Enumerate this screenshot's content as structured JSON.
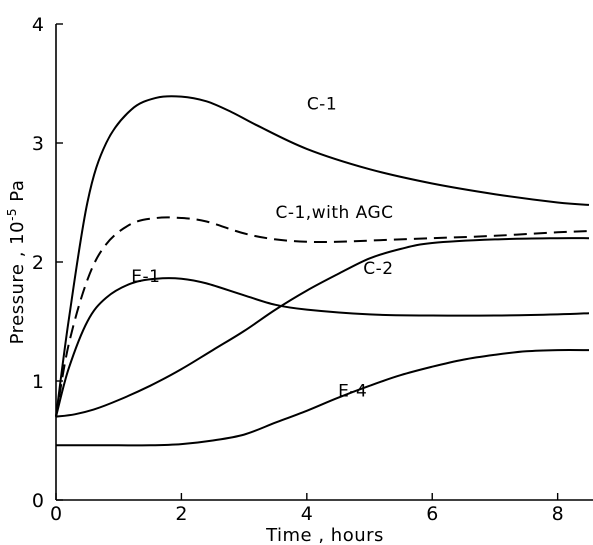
{
  "chart_data": {
    "type": "line",
    "xlabel": "Time , hours",
    "ylabel": "Pressure , 10",
    "ylabel_exponent": "-5",
    "ylabel_unit": " Pa",
    "xlim": [
      0,
      8.5
    ],
    "ylim": [
      0,
      4
    ],
    "xticks": [
      0,
      2,
      4,
      6,
      8
    ],
    "yticks": [
      0,
      1,
      2,
      3,
      4
    ],
    "grid": false,
    "series": [
      {
        "name": "C-1",
        "dash": "solid",
        "x": [
          0,
          0.2,
          0.5,
          0.8,
          1.2,
          1.6,
          2.0,
          2.4,
          2.8,
          3.2,
          4.0,
          5.0,
          6.0,
          7.0,
          8.0,
          8.5
        ],
        "y": [
          0.7,
          1.5,
          2.5,
          3.0,
          3.28,
          3.38,
          3.39,
          3.35,
          3.26,
          3.15,
          2.95,
          2.78,
          2.66,
          2.57,
          2.5,
          2.48
        ]
      },
      {
        "name": "C-1,with AGC",
        "dash": "dashed",
        "x": [
          0,
          0.2,
          0.5,
          0.8,
          1.2,
          1.6,
          2.0,
          2.4,
          3.0,
          3.5,
          4.0,
          4.5,
          5.0,
          6.0,
          7.0,
          8.0,
          8.5
        ],
        "y": [
          0.7,
          1.3,
          1.85,
          2.15,
          2.32,
          2.37,
          2.37,
          2.34,
          2.24,
          2.19,
          2.17,
          2.17,
          2.18,
          2.2,
          2.22,
          2.25,
          2.26
        ]
      },
      {
        "name": "E-1",
        "dash": "solid",
        "x": [
          0,
          0.2,
          0.5,
          0.8,
          1.2,
          1.6,
          2.0,
          2.4,
          3.0,
          3.5,
          4.0,
          5.0,
          6.0,
          7.0,
          8.0,
          8.5
        ],
        "y": [
          0.7,
          1.1,
          1.5,
          1.7,
          1.82,
          1.86,
          1.86,
          1.82,
          1.72,
          1.64,
          1.6,
          1.56,
          1.55,
          1.55,
          1.56,
          1.57
        ]
      },
      {
        "name": "C-2",
        "dash": "solid",
        "x": [
          0,
          0.3,
          0.6,
          1.0,
          1.5,
          2.0,
          2.5,
          3.0,
          3.5,
          4.0,
          4.5,
          5.0,
          5.5,
          6.0,
          7.0,
          8.0,
          8.5
        ],
        "y": [
          0.7,
          0.72,
          0.76,
          0.84,
          0.96,
          1.1,
          1.26,
          1.42,
          1.6,
          1.76,
          1.9,
          2.03,
          2.11,
          2.16,
          2.19,
          2.2,
          2.2
        ]
      },
      {
        "name": "E-4",
        "dash": "solid",
        "x": [
          0,
          0.5,
          1.0,
          1.5,
          2.0,
          2.5,
          3.0,
          3.5,
          4.0,
          4.5,
          5.0,
          5.5,
          6.0,
          6.5,
          7.0,
          7.5,
          8.0,
          8.5
        ],
        "y": [
          0.46,
          0.46,
          0.46,
          0.46,
          0.47,
          0.5,
          0.55,
          0.65,
          0.75,
          0.86,
          0.96,
          1.05,
          1.12,
          1.18,
          1.22,
          1.25,
          1.26,
          1.26
        ]
      }
    ],
    "annotations": [
      {
        "text": "C-1",
        "x": 4.0,
        "y": 3.28
      },
      {
        "text": "C-1,with AGC",
        "x": 3.5,
        "y": 2.37
      },
      {
        "text": "E-1",
        "x": 1.2,
        "y": 1.83
      },
      {
        "text": "C-2",
        "x": 4.9,
        "y": 1.9
      },
      {
        "text": "E-4",
        "x": 4.5,
        "y": 0.87
      }
    ]
  }
}
